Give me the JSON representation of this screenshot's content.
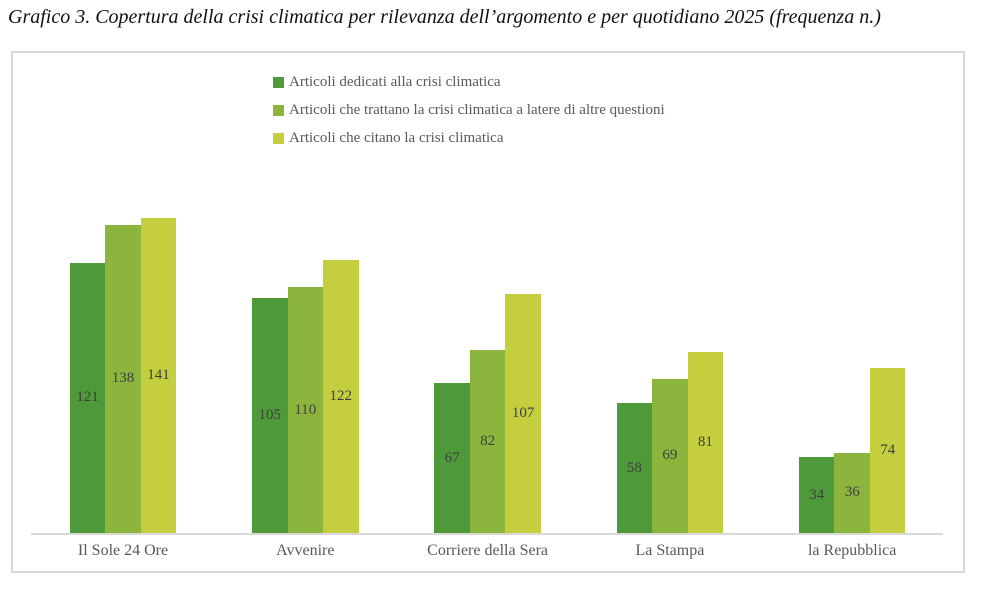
{
  "title": "Grafico 3. Copertura della crisi climatica per rilevanza dell’argomento e per quotidiano 2025 (frequenza n.)",
  "colors": {
    "chart_border": "#D9D9D9",
    "axis_line": "#D9D9D9",
    "title_text": "#111111",
    "data_label_text": "#3F3F3F",
    "category_text": "#595959",
    "legend_text": "#595959"
  },
  "chart_data": {
    "type": "bar",
    "title": "Grafico 3. Copertura della crisi climatica per rilevanza dell’argomento e per quotidiano 2025 (frequenza n.)",
    "categories": [
      "Il Sole 24 Ore",
      "Avvenire",
      "Corriere della Sera",
      "La Stampa",
      "la Repubblica"
    ],
    "series": [
      {
        "name": "Articoli dedicati alla crisi climatica",
        "color": "#4E9A3B",
        "values": [
          121,
          105,
          67,
          58,
          34
        ]
      },
      {
        "name": "Articoli che trattano la crisi climatica a latere di altre questioni",
        "color": "#8BB53C",
        "values": [
          138,
          110,
          82,
          69,
          36
        ]
      },
      {
        "name": "Articoli che citano la crisi climatica",
        "color": "#C4CE3E",
        "values": [
          141,
          122,
          107,
          81,
          74
        ]
      }
    ],
    "xlabel": "",
    "ylabel": "",
    "ylim": [
      0,
      170
    ],
    "grid": false,
    "data_labels": "center",
    "legend_position": "top-center"
  }
}
